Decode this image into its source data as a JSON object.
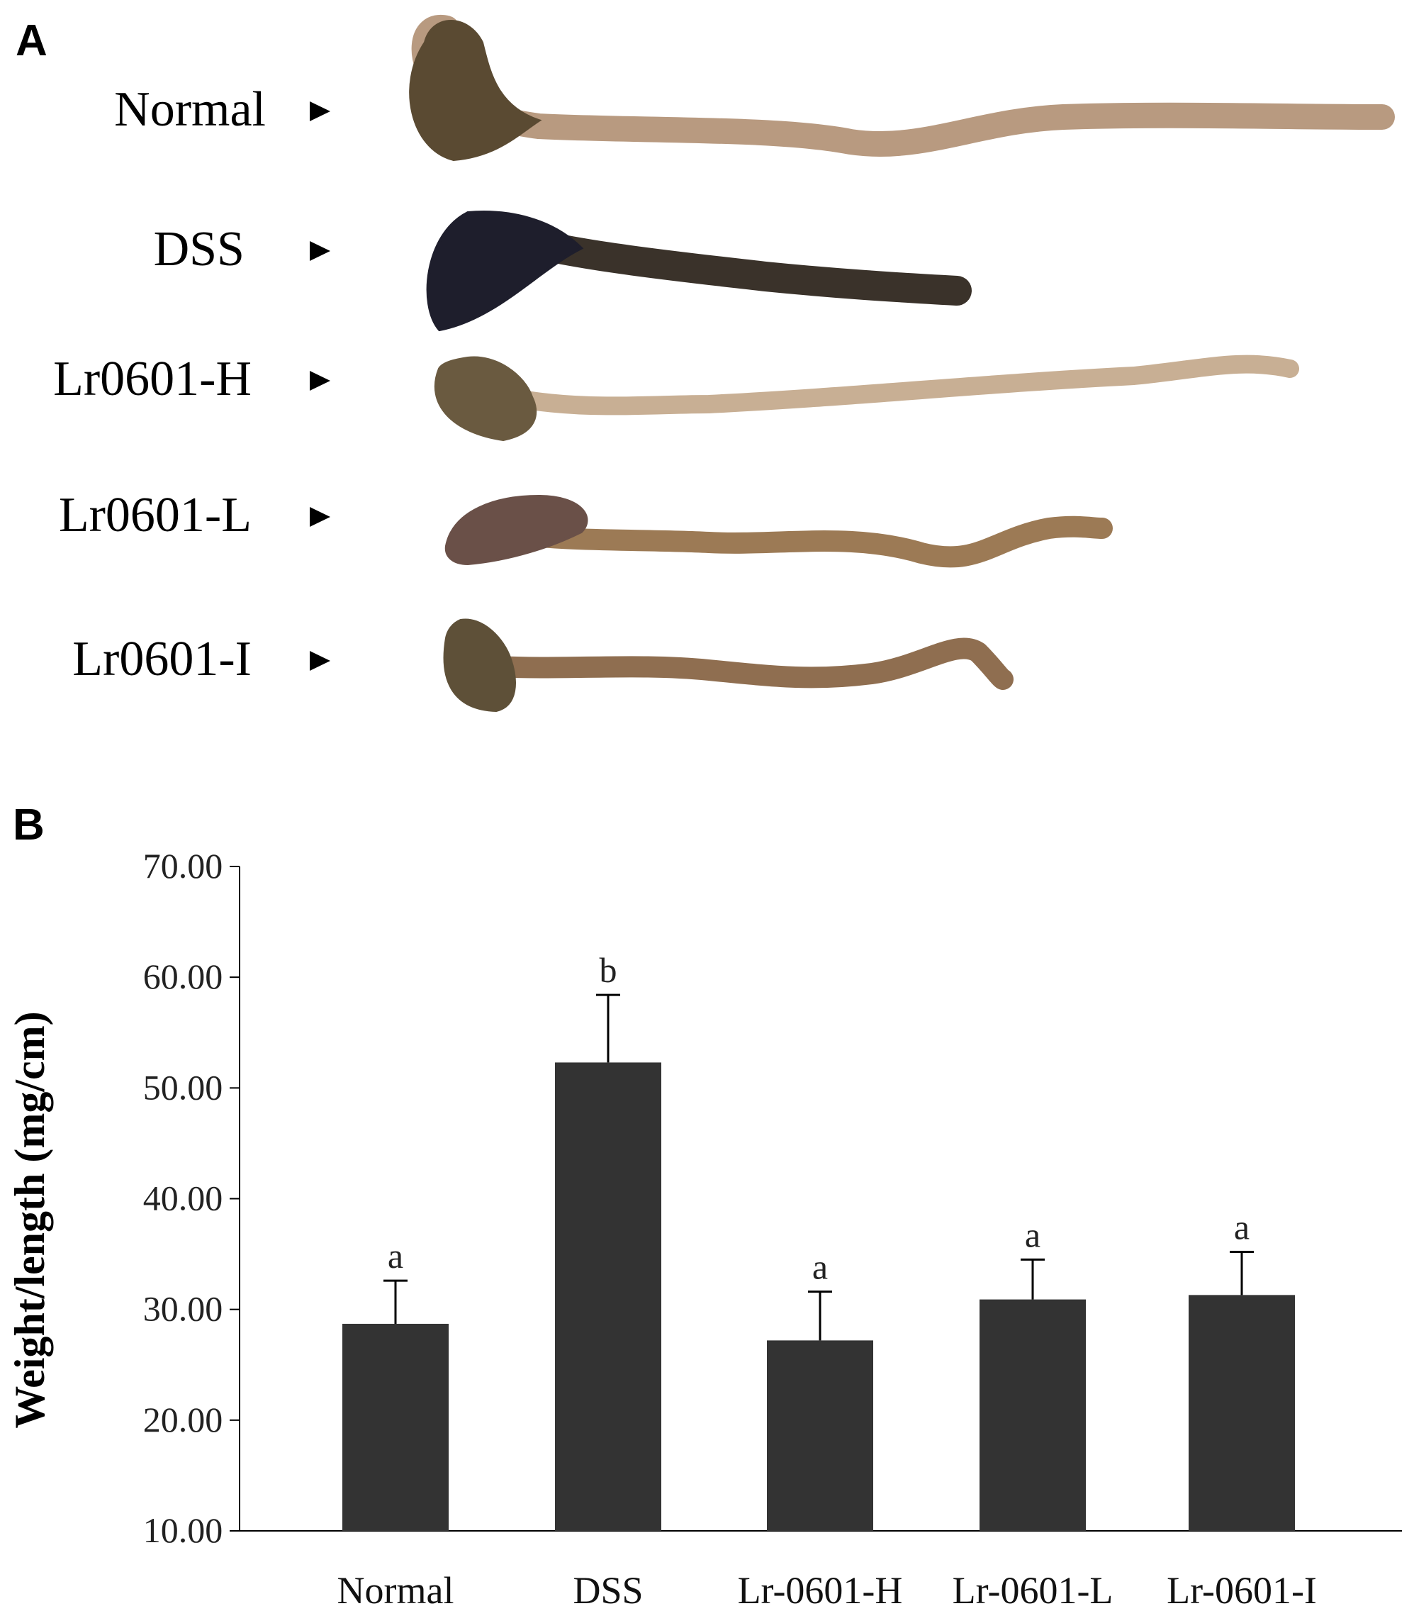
{
  "panel_a": {
    "letter": "A",
    "samples": [
      {
        "label": "Normal",
        "colon_color": "#b89a80",
        "proximal_color": "#5a4a32"
      },
      {
        "label": "DSS",
        "colon_color": "#3a322a",
        "proximal_color": "#1e1e2c"
      },
      {
        "label": "Lr0601-H",
        "colon_color": "#c8af94",
        "proximal_color": "#6a5a40"
      },
      {
        "label": "Lr0601-L",
        "colon_color": "#9c7a55",
        "proximal_color": "#6a5048"
      },
      {
        "label": "Lr0601-I",
        "colon_color": "#8f6e50",
        "proximal_color": "#5e5038"
      }
    ]
  },
  "panel_b": {
    "letter": "B"
  },
  "chart_data": {
    "type": "bar",
    "categories": [
      "Normal",
      "DSS",
      "Lr-0601-H",
      "Lr-0601-L",
      "Lr-0601-I"
    ],
    "values": [
      28.7,
      52.3,
      27.2,
      30.9,
      31.3
    ],
    "errors": [
      3.9,
      6.1,
      4.4,
      3.6,
      3.9
    ],
    "significance": [
      "a",
      "b",
      "a",
      "a",
      "a"
    ],
    "ylabel": "Weight/length (mg/cm)",
    "xlabel": "",
    "ylim": [
      10,
      70
    ],
    "yticks": [
      "10.00",
      "20.00",
      "30.00",
      "40.00",
      "50.00",
      "60.00",
      "70.00"
    ],
    "bar_color": "#333333",
    "grid": false
  }
}
